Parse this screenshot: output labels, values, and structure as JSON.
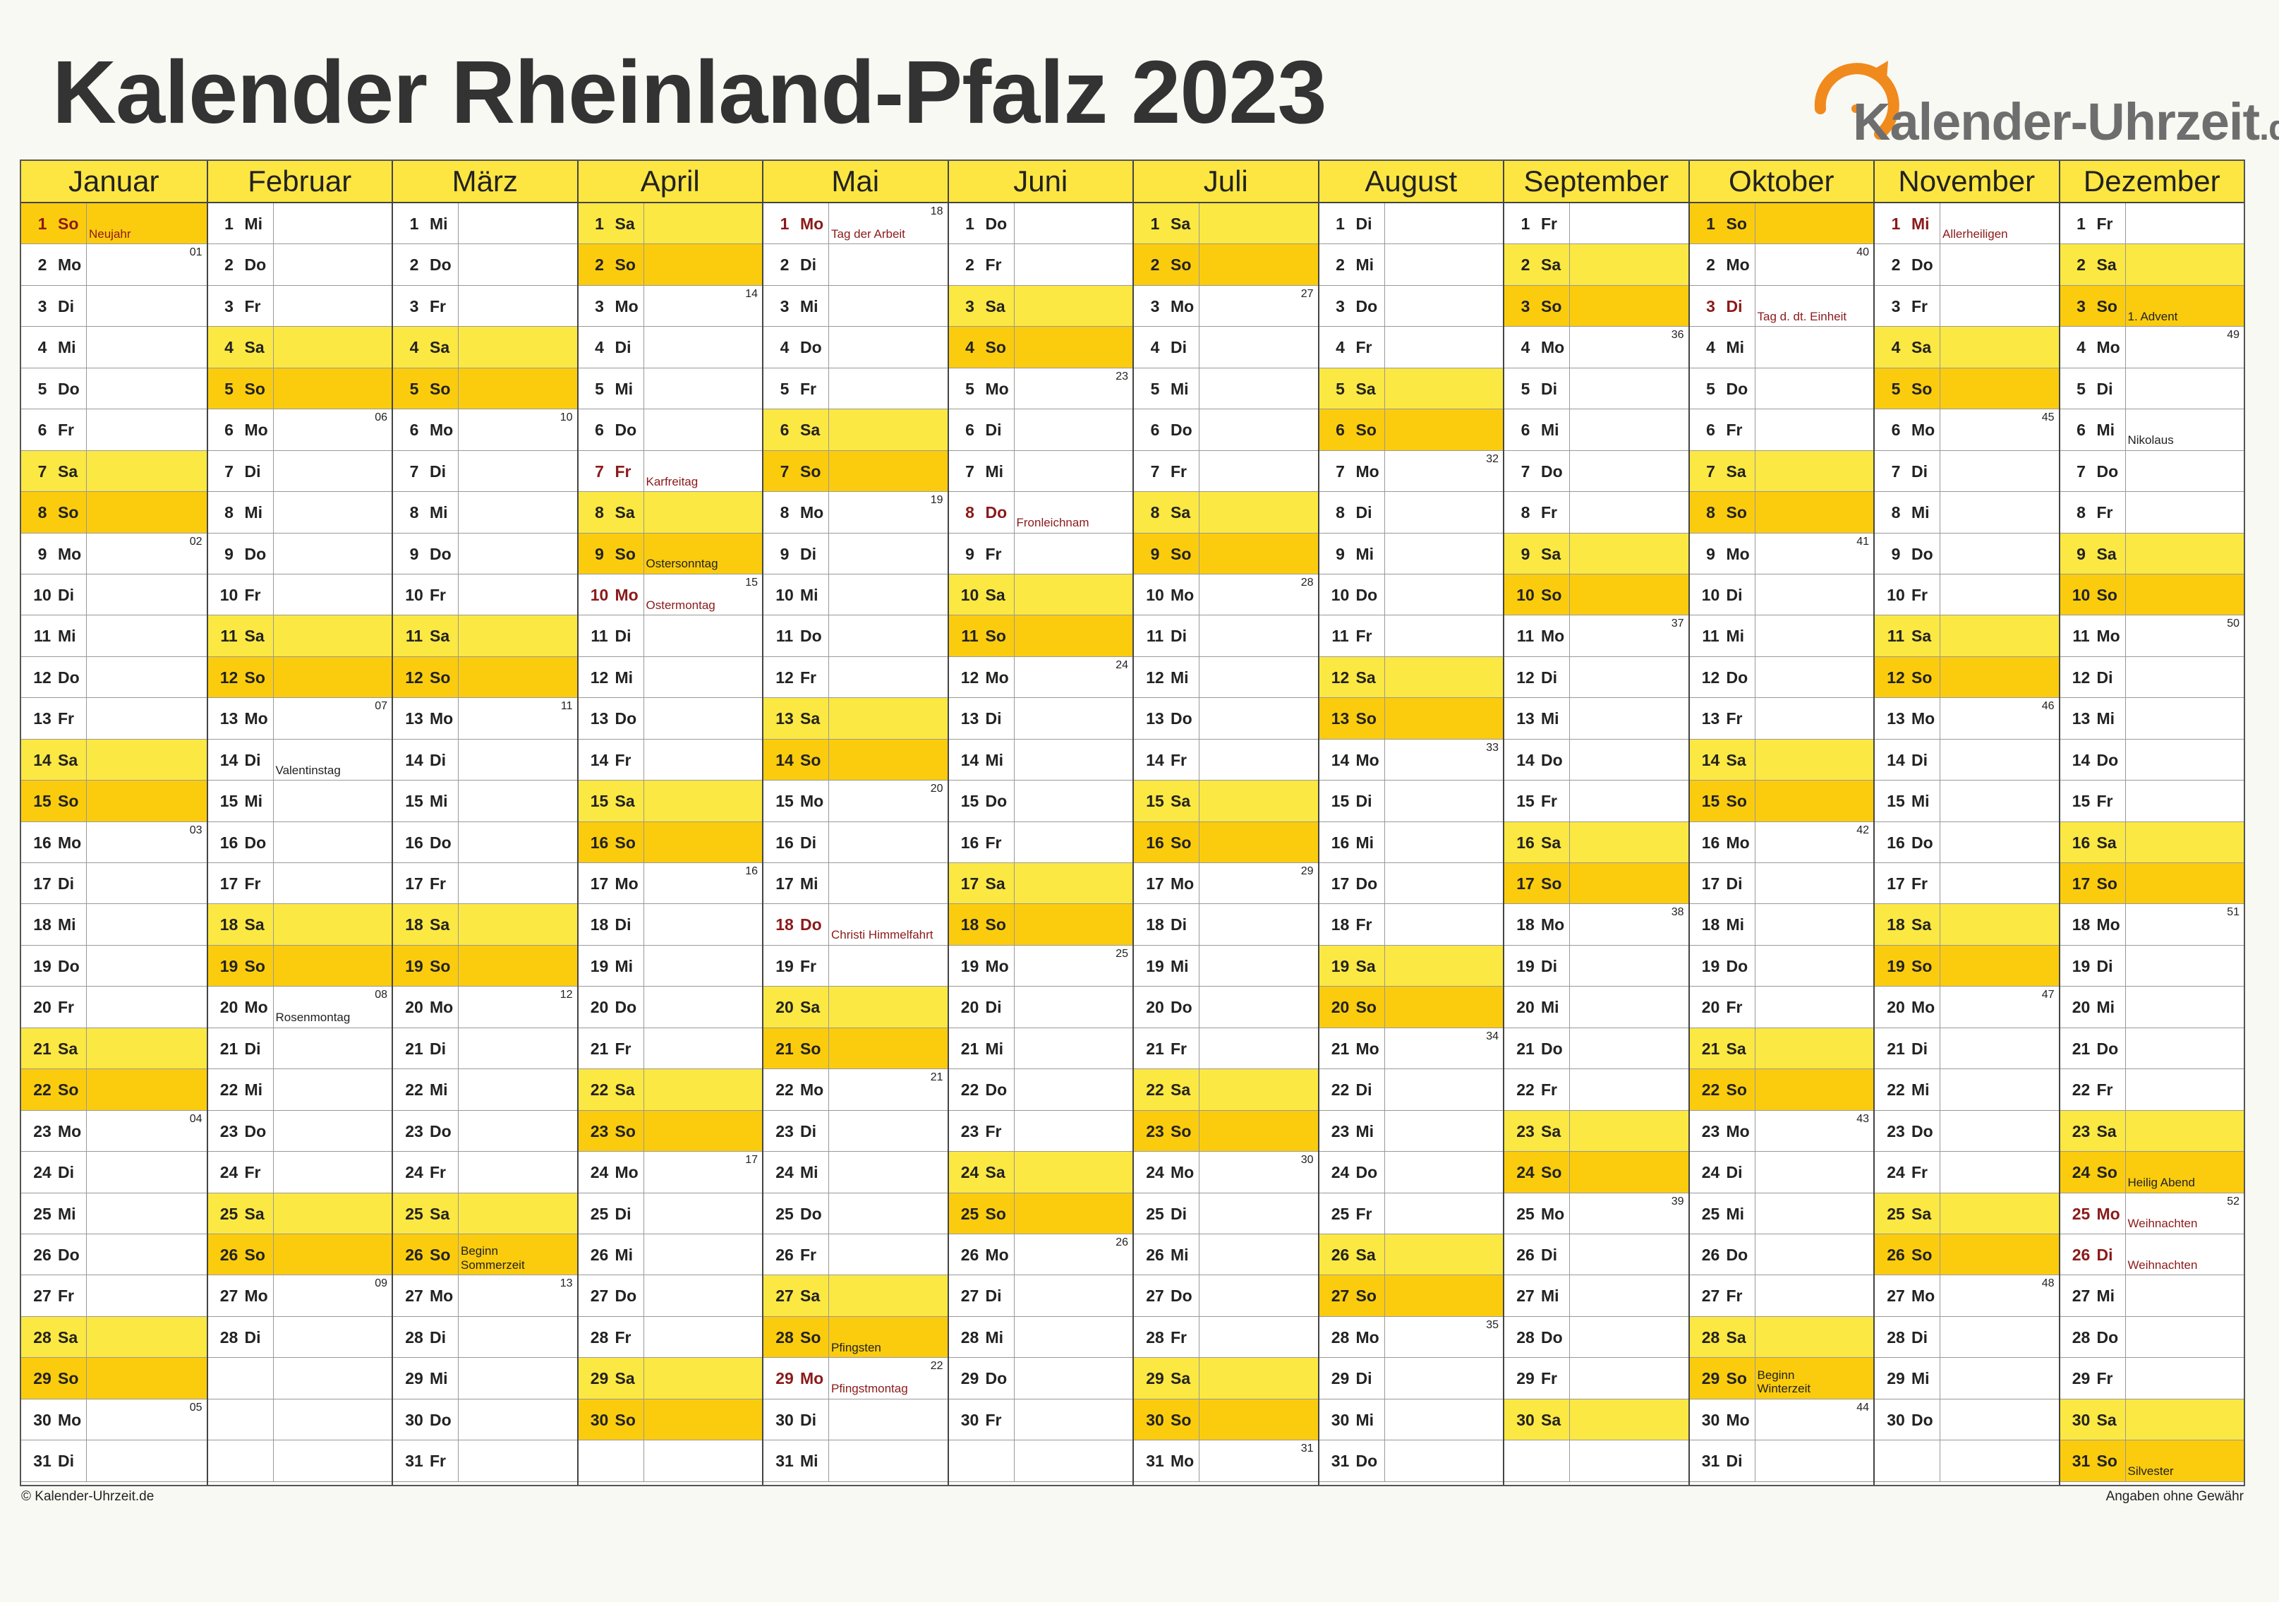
{
  "title": "Kalender Rheinland-Pfalz 2023",
  "logo": {
    "text": "Kalender-Uhrzeit",
    "tld": ".de",
    "accent": "#f08a1c"
  },
  "colors": {
    "header": "#fde642",
    "saturday": "#fce842",
    "sunday": "#fbcc0e",
    "holiday_text": "#8b1a1a"
  },
  "footer": {
    "left": "© Kalender-Uhrzeit.de",
    "right": "Angaben ohne Gewähr"
  },
  "months": [
    {
      "name": "Januar",
      "days": 31,
      "start": 0,
      "notes": {
        "1": "Neujahr"
      },
      "hol": [
        1
      ],
      "kw": {
        "2": "01",
        "9": "02",
        "16": "03",
        "23": "04",
        "30": "05"
      }
    },
    {
      "name": "Februar",
      "days": 28,
      "start": 3,
      "notes": {
        "14": "Valentinstag",
        "20": "Rosenmontag"
      },
      "hol": [],
      "kw": {
        "6": "06",
        "13": "07",
        "20": "08",
        "27": "09"
      }
    },
    {
      "name": "März",
      "days": 31,
      "start": 3,
      "notes": {
        "26": "Beginn\nSommerzeit"
      },
      "hol": [],
      "kw": {
        "6": "10",
        "13": "11",
        "20": "12",
        "27": "13"
      }
    },
    {
      "name": "April",
      "days": 30,
      "start": 6,
      "notes": {
        "7": "Karfreitag",
        "9": "Ostersonntag",
        "10": "Ostermontag"
      },
      "hol": [
        7,
        10
      ],
      "kw": {
        "3": "14",
        "10": "15",
        "17": "16",
        "24": "17"
      }
    },
    {
      "name": "Mai",
      "days": 31,
      "start": 1,
      "notes": {
        "1": "Tag der Arbeit",
        "18": "Christi Himmelfahrt",
        "28": "Pfingsten",
        "29": "Pfingstmontag"
      },
      "hol": [
        1,
        18,
        29
      ],
      "kw": {
        "1": "18",
        "8": "19",
        "15": "20",
        "22": "21",
        "29": "22"
      }
    },
    {
      "name": "Juni",
      "days": 30,
      "start": 4,
      "notes": {
        "8": "Fronleichnam"
      },
      "hol": [
        8
      ],
      "kw": {
        "5": "23",
        "12": "24",
        "19": "25",
        "26": "26"
      }
    },
    {
      "name": "Juli",
      "days": 31,
      "start": 6,
      "notes": {},
      "hol": [],
      "kw": {
        "3": "27",
        "10": "28",
        "17": "29",
        "24": "30",
        "31": "31"
      }
    },
    {
      "name": "August",
      "days": 31,
      "start": 2,
      "notes": {},
      "hol": [],
      "kw": {
        "7": "32",
        "14": "33",
        "21": "34",
        "28": "35"
      }
    },
    {
      "name": "September",
      "days": 30,
      "start": 5,
      "notes": {},
      "hol": [],
      "kw": {
        "4": "36",
        "11": "37",
        "18": "38",
        "25": "39"
      }
    },
    {
      "name": "Oktober",
      "days": 31,
      "start": 0,
      "notes": {
        "3": "Tag d. dt. Einheit",
        "29": "Beginn\nWinterzeit"
      },
      "hol": [
        3
      ],
      "kw": {
        "2": "40",
        "9": "41",
        "16": "42",
        "23": "43",
        "30": "44"
      }
    },
    {
      "name": "November",
      "days": 30,
      "start": 3,
      "notes": {
        "1": "Allerheiligen"
      },
      "hol": [
        1
      ],
      "kw": {
        "6": "45",
        "13": "46",
        "20": "47",
        "27": "48"
      }
    },
    {
      "name": "Dezember",
      "days": 31,
      "start": 5,
      "notes": {
        "3": "1. Advent",
        "6": "Nikolaus",
        "24": "Heilig Abend",
        "25": "Weihnachten",
        "26": "Weihnachten",
        "31": "Silvester"
      },
      "hol": [
        25,
        26
      ],
      "kw": {
        "4": "49",
        "11": "50",
        "18": "51",
        "25": "52"
      }
    }
  ],
  "weekdays": [
    "So",
    "Mo",
    "Di",
    "Mi",
    "Do",
    "Fr",
    "Sa"
  ]
}
